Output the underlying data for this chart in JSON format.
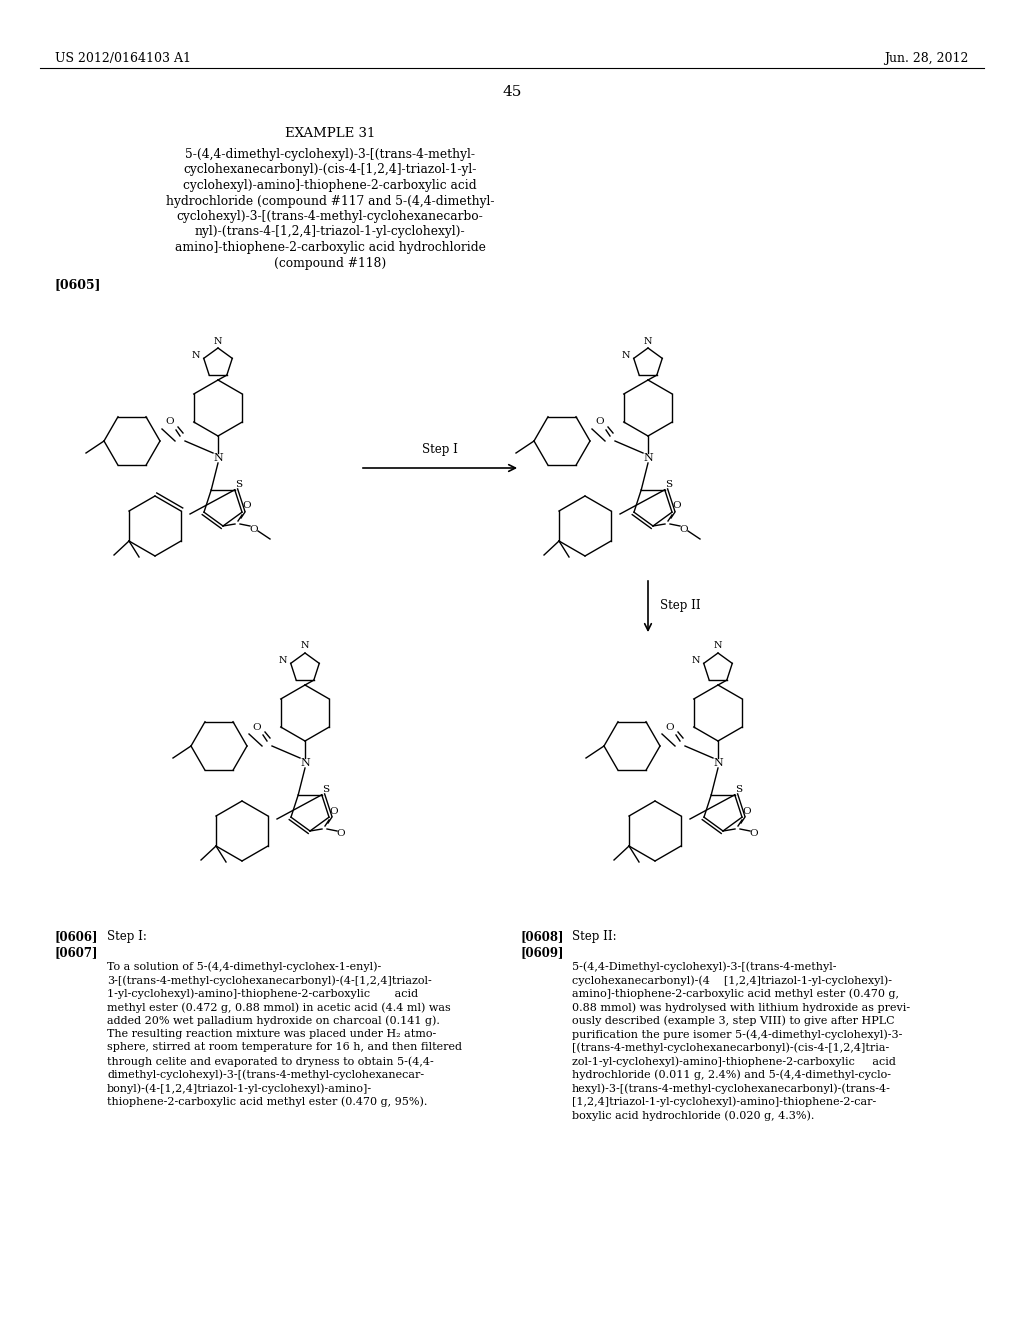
{
  "page_number": "45",
  "header_left": "US 2012/0164103 A1",
  "header_right": "Jun. 28, 2012",
  "example_title": "EXAMPLE 31",
  "example_subtitle_lines": [
    "5-(4,4-dimethyl-cyclohexyl)-3-[(trans-4-methyl-",
    "cyclohexanecarbonyl)-(cis-4-[1,2,4]-triazol-1-yl-",
    "cyclohexyl)-amino]-thiophene-2-carboxylic acid",
    "hydrochloride (compound #117 and 5-(4,4-dimethyl-",
    "cyclohexyl)-3-[(trans-4-methyl-cyclohexanecarbo-",
    "nyl)-(trans-4-[1,2,4]-triazol-1-yl-cyclohexyl)-",
    "amino]-thiophene-2-carboxylic acid hydrochloride",
    "(compound #118)"
  ],
  "paragraph_tag_1": "[0605]",
  "step_label_1": "Step I",
  "step_label_2": "Step II",
  "paragraph_tag_2": "[0606]",
  "step_I_label": "Step I:",
  "paragraph_tag_3": "[0607]",
  "paragraph_tag_4": "[0608]",
  "step_II_label": "Step II:",
  "paragraph_tag_5": "[0609]",
  "step_I_lines": [
    "To a solution of 5-(4,4-dimethyl-cyclohex-1-enyl)-",
    "3-[(trans-4-methyl-cyclohexanecarbonyl)-(4-[1,2,4]triazol-",
    "1-yl-cyclohexyl)-amino]-thiophene-2-carboxylic       acid",
    "methyl ester (0.472 g, 0.88 mmol) in acetic acid (4.4 ml) was",
    "added 20% wet palladium hydroxide on charcoal (0.141 g).",
    "The resulting reaction mixture was placed under H₂ atmo-",
    "sphere, stirred at room temperature for 16 h, and then filtered",
    "through celite and evaporated to dryness to obtain 5-(4,4-",
    "dimethyl-cyclohexyl)-3-[(trans-4-methyl-cyclohexanecar-",
    "bonyl)-(4-[1,2,4]triazol-1-yl-cyclohexyl)-amino]-",
    "thiophene-2-carboxylic acid methyl ester (0.470 g, 95%)."
  ],
  "step_II_lines": [
    "5-(4,4-Dimethyl-cyclohexyl)-3-[(trans-4-methyl-",
    "cyclohexanecarbonyl)-(4    [1,2,4]triazol-1-yl-cyclohexyl)-",
    "amino]-thiophene-2-carboxylic acid methyl ester (0.470 g,",
    "0.88 mmol) was hydrolysed with lithium hydroxide as previ-",
    "ously described (example 3, step VIII) to give after HPLC",
    "purification the pure isomer 5-(4,4-dimethyl-cyclohexyl)-3-",
    "[(trans-4-methyl-cyclohexanecarbonyl)-(cis-4-[1,2,4]tria-",
    "zol-1-yl-cyclohexyl)-amino]-thiophene-2-carboxylic     acid",
    "hydrochloride (0.011 g, 2.4%) and 5-(4,4-dimethyl-cyclo-",
    "hexyl)-3-[(trans-4-methyl-cyclohexanecarbonyl)-(trans-4-",
    "[1,2,4]triazol-1-yl-cyclohexyl)-amino]-thiophene-2-car-",
    "boxylic acid hydrochloride (0.020 g, 4.3%)."
  ],
  "background_color": "#ffffff",
  "text_color": "#000000"
}
